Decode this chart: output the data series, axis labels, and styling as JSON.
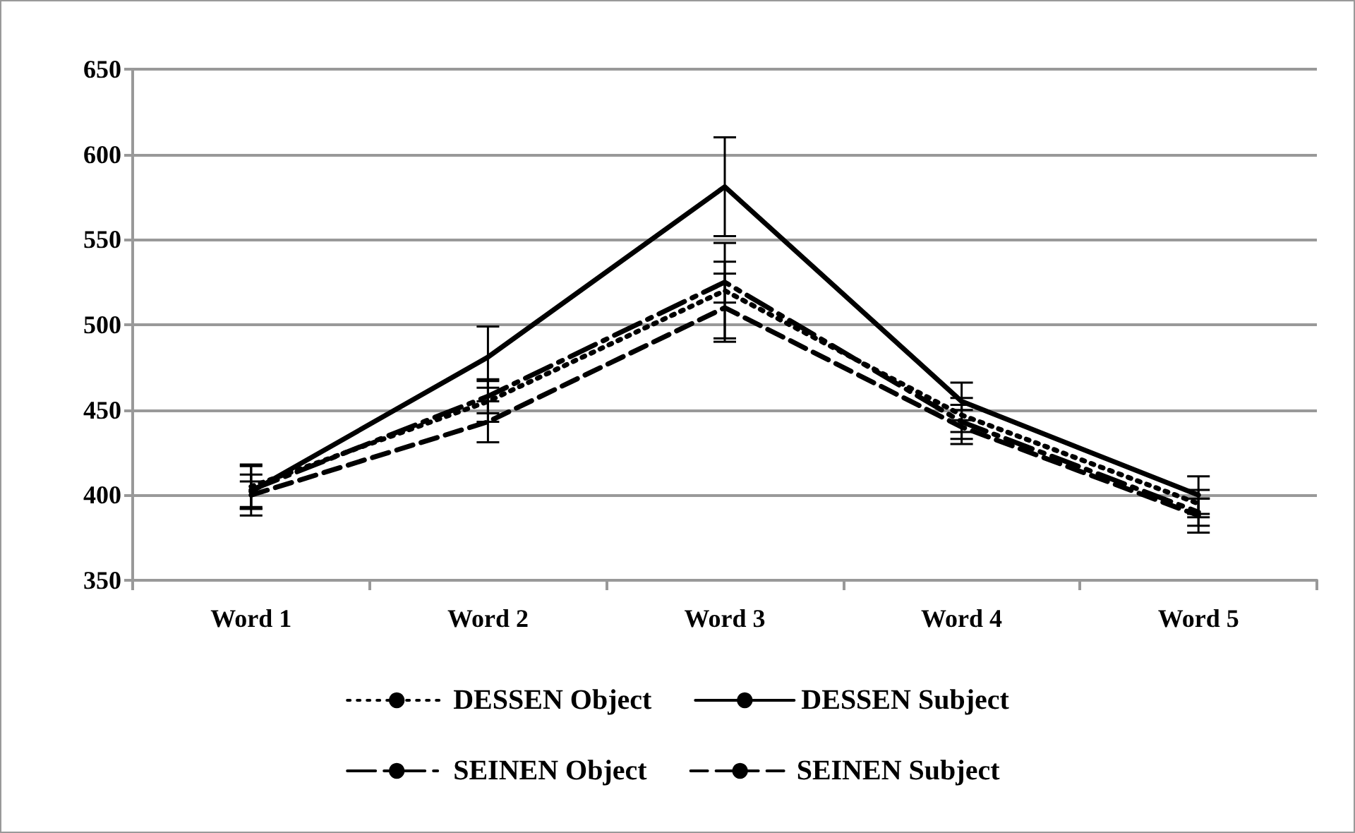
{
  "chart_data": {
    "type": "line",
    "categories": [
      "Word 1",
      "Word 2",
      "Word 3",
      "Word 4",
      "Word 5"
    ],
    "series": [
      {
        "name": "DESSEN Object",
        "color": "#000000",
        "line_style": "dotted",
        "values": [
          405,
          455,
          520,
          447,
          395
        ],
        "errors": [
          12,
          12,
          28,
          10,
          8
        ]
      },
      {
        "name": "DESSEN Subject",
        "color": "#000000",
        "line_style": "solid",
        "values": [
          402,
          481,
          581,
          455,
          400
        ],
        "errors": [
          10,
          18,
          29,
          11,
          11
        ]
      },
      {
        "name": "SEINEN Object",
        "color": "#000000",
        "line_style": "dashed",
        "values": [
          403,
          458,
          525,
          443,
          390
        ],
        "errors": [
          15,
          10,
          12,
          10,
          8
        ]
      },
      {
        "name": "SEINEN Subject",
        "color": "#000000",
        "line_style": "dashed",
        "values": [
          400,
          443,
          510,
          440,
          388
        ],
        "errors": [
          8,
          12,
          20,
          10,
          10
        ]
      }
    ],
    "ylim": [
      350,
      650
    ],
    "yticks": [
      350,
      400,
      450,
      500,
      550,
      600,
      650
    ],
    "grid": "y",
    "legend": "bottom",
    "marker": "none"
  }
}
